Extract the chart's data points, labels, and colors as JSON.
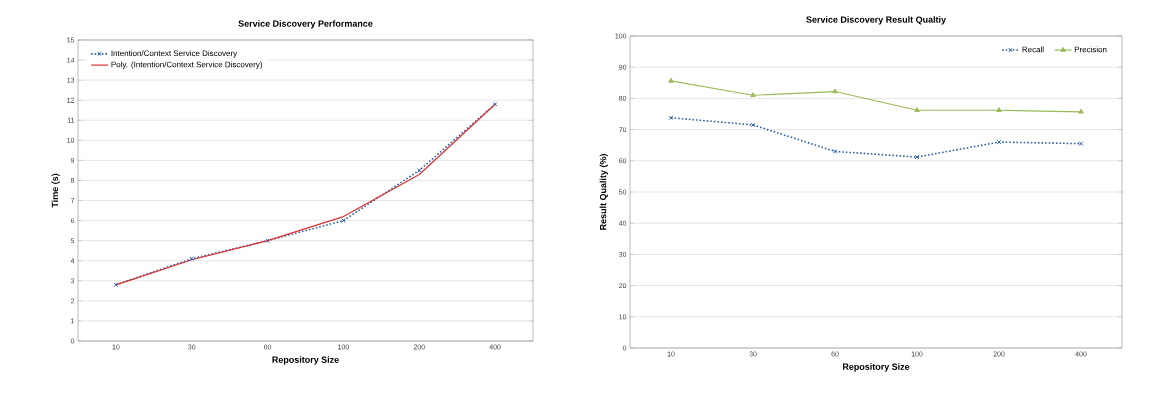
{
  "chart_data": [
    {
      "type": "line",
      "title": "Service Discovery Performance",
      "xlabel": "Repository Size",
      "ylabel": "Time (s)",
      "categories": [
        "10",
        "30",
        "60",
        "100",
        "200",
        "400"
      ],
      "series": [
        {
          "name": "Intention/Context Service Discovery",
          "color": "#2e5fa8",
          "values": [
            2.8,
            4.1,
            5.0,
            6.0,
            8.5,
            11.8
          ],
          "marker": "cross",
          "line_style": "dotted"
        },
        {
          "name": "Poly. (Intention/Context Service Discovery)",
          "color": "#e03030",
          "values": [
            2.8,
            4.05,
            5.0,
            6.2,
            8.3,
            11.8
          ],
          "marker": "none",
          "line_style": "solid"
        }
      ],
      "ylim": [
        0,
        15
      ],
      "yticks": [
        0,
        1,
        2,
        3,
        4,
        5,
        6,
        7,
        8,
        9,
        10,
        11,
        12,
        13,
        14,
        15
      ],
      "grid": "y",
      "legend": "top left"
    },
    {
      "type": "line",
      "title": "Service Discovery Result Qualtiy",
      "xlabel": "Repository Size",
      "ylabel": "Result Quality (%)",
      "categories": [
        "10",
        "30",
        "60",
        "100",
        "200",
        "400"
      ],
      "series": [
        {
          "name": "Recall",
          "color": "#2e5fa8",
          "values": [
            73.8,
            71.5,
            63.0,
            61.2,
            66.0,
            65.5
          ],
          "marker": "cross",
          "line_style": "dotted"
        },
        {
          "name": "Precision",
          "color": "#9bbb59",
          "values": [
            85.6,
            81.0,
            82.2,
            76.2,
            76.2,
            75.7
          ],
          "marker": "triangle",
          "line_style": "solid"
        }
      ],
      "ylim": [
        0,
        100
      ],
      "yticks": [
        0,
        10,
        20,
        30,
        40,
        50,
        60,
        70,
        80,
        90,
        100
      ],
      "grid": "y",
      "legend": "top right"
    }
  ]
}
